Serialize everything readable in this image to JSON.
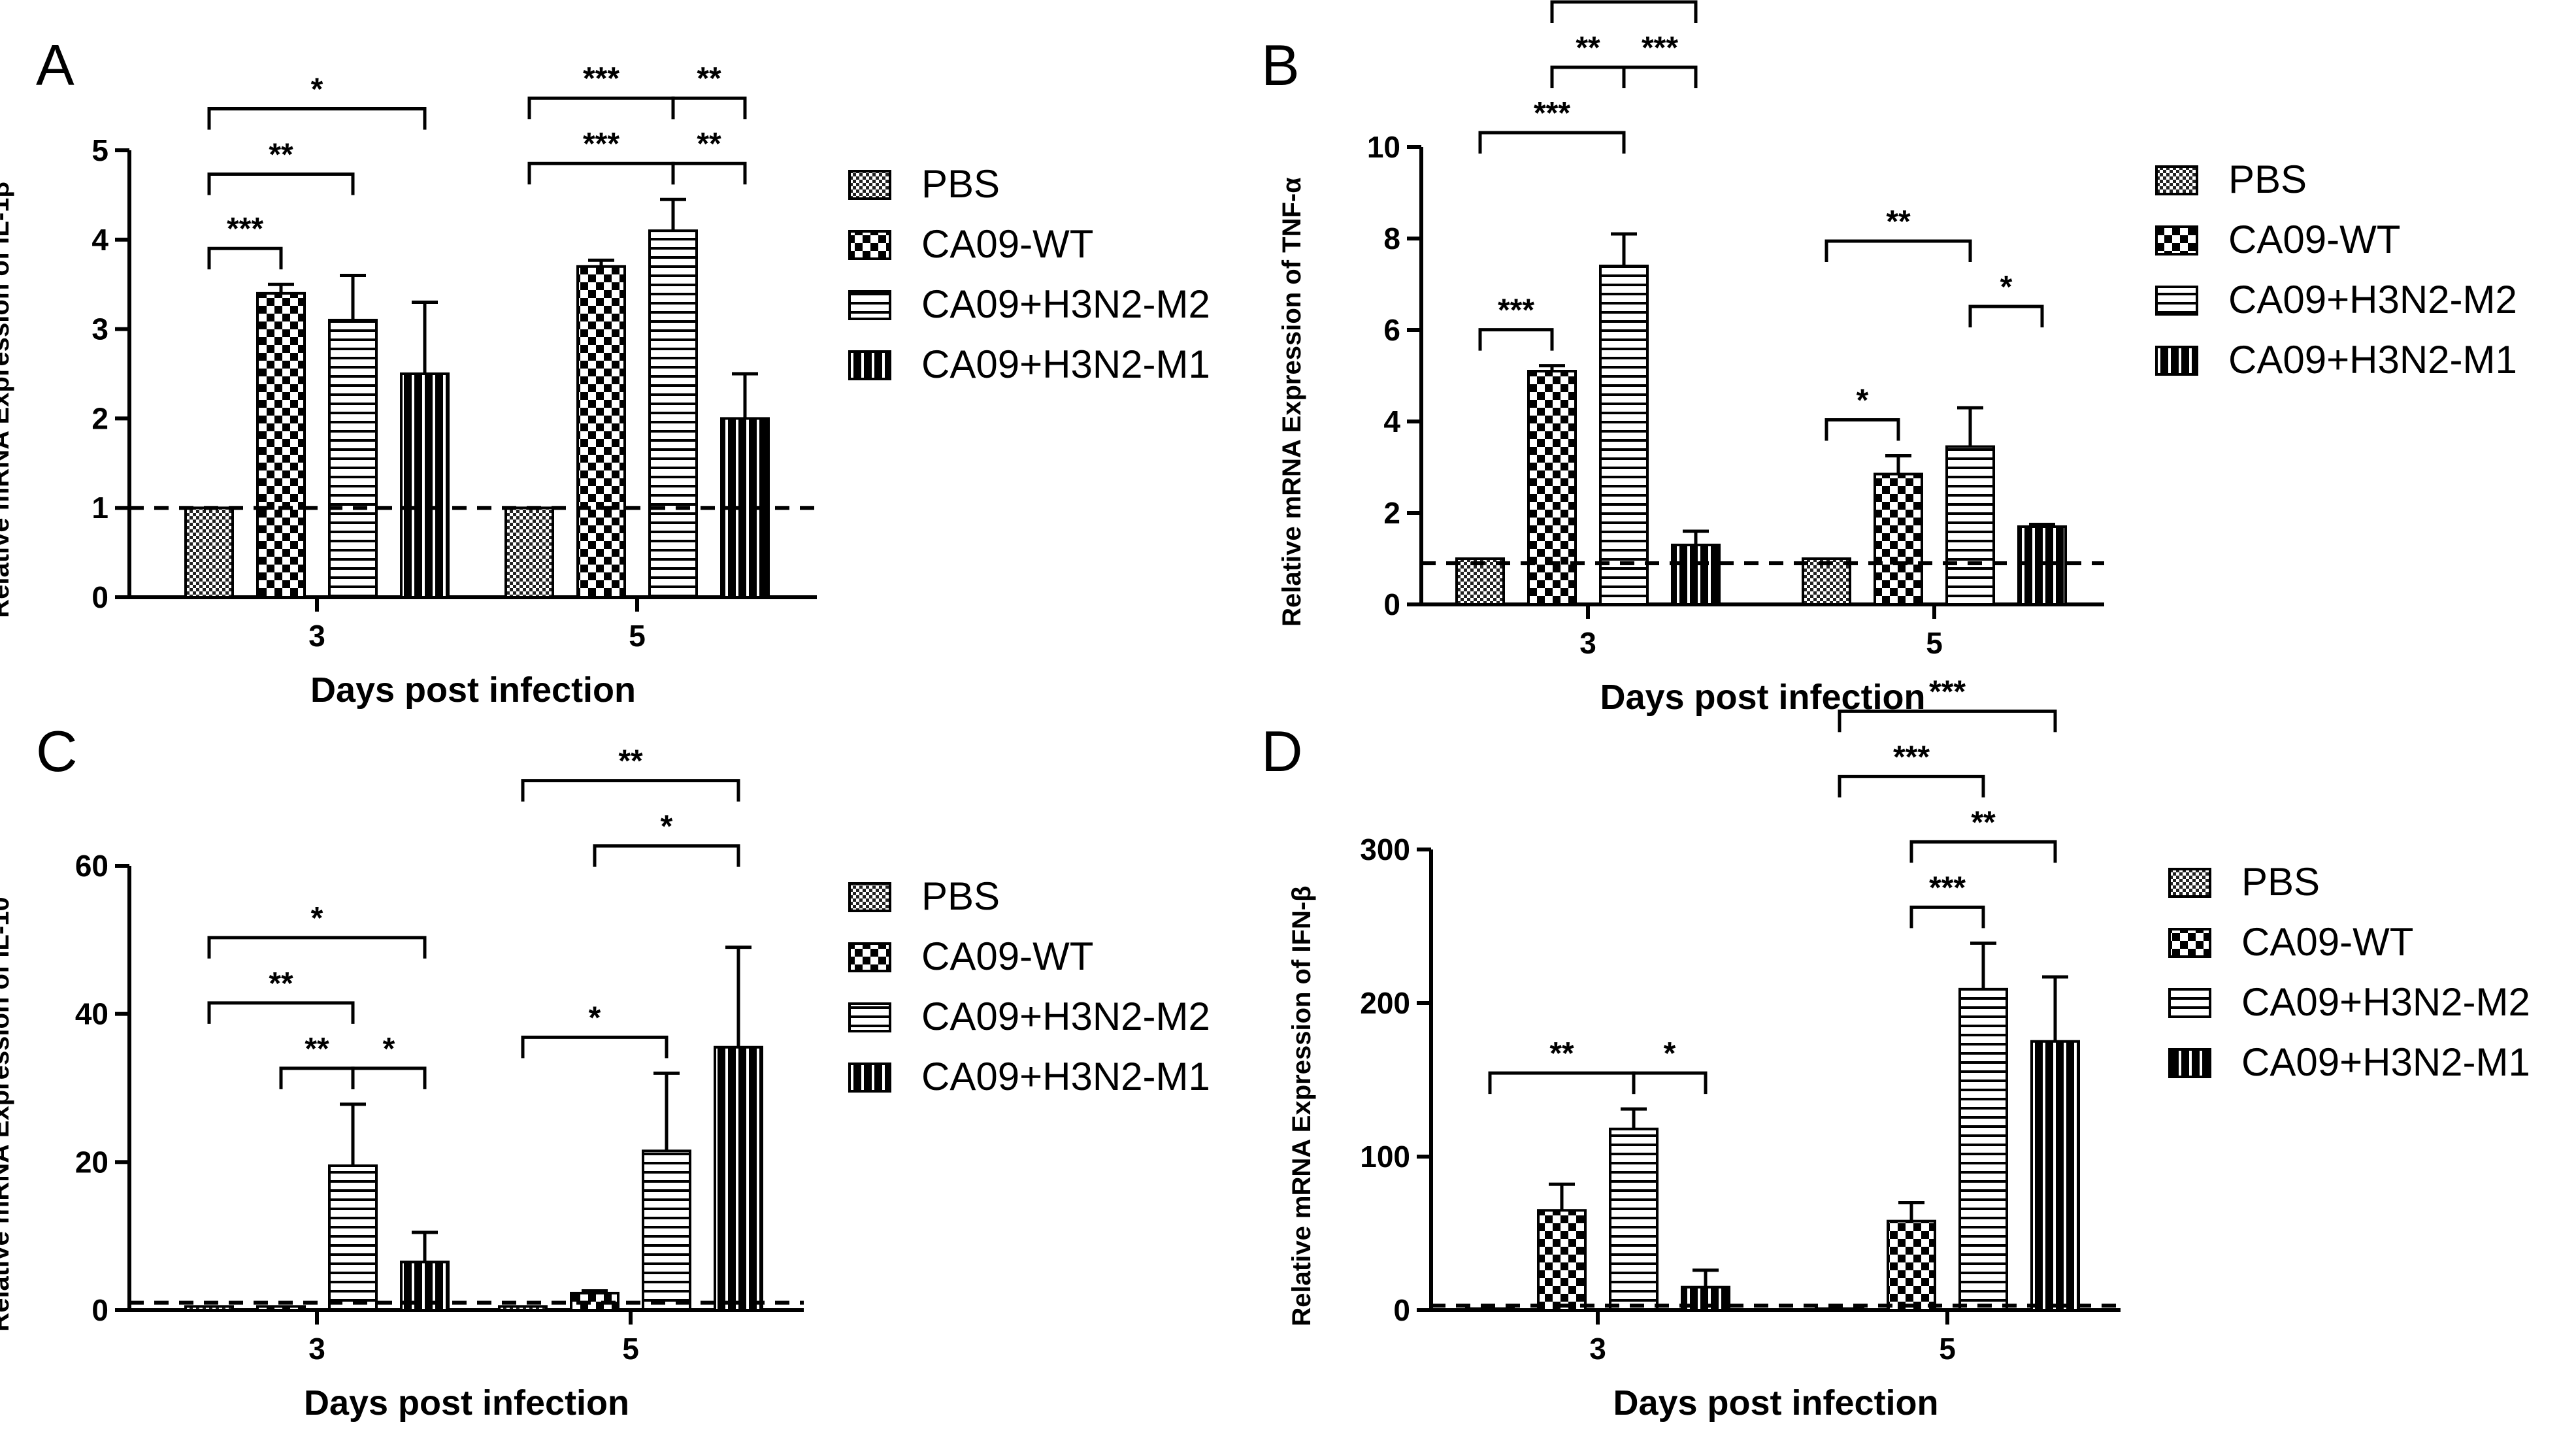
{
  "chart_data": [
    {
      "panel": "A",
      "type": "bar",
      "categories": [
        "3",
        "5"
      ],
      "xlabel": "Days post infection",
      "ylabel": "Relative mRNA Expression of IL-1β",
      "ylim": [
        0,
        5
      ],
      "yticks": [
        "0",
        "1",
        "2",
        "3",
        "4",
        "5"
      ],
      "reference_line": 1,
      "series": [
        {
          "name": "PBS",
          "values": [
            1.0,
            1.0
          ],
          "errors": [
            0,
            0
          ]
        },
        {
          "name": "CA09-WT",
          "values": [
            3.4,
            3.7
          ],
          "errors": [
            0.1,
            0.07
          ]
        },
        {
          "name": "CA09+H3N2-M2",
          "values": [
            3.1,
            4.1
          ],
          "errors": [
            0.5,
            0.35
          ]
        },
        {
          "name": "CA09+H3N2-M1",
          "values": [
            2.5,
            2.0
          ],
          "errors": [
            0.8,
            0.5
          ]
        }
      ],
      "significance": [
        {
          "day": "3",
          "from": 0,
          "to": 1,
          "label": "***",
          "level": 0,
          "joint": "none"
        },
        {
          "day": "3",
          "from": 0,
          "to": 2,
          "label": "**",
          "level": 1,
          "joint": "none"
        },
        {
          "day": "3",
          "from": 0,
          "to": 3,
          "label": "*",
          "level": 2,
          "joint": "none"
        },
        {
          "day": "5",
          "from": 0,
          "to": 2,
          "label": "***",
          "level": 0,
          "joint": "end"
        },
        {
          "day": "5",
          "from": 2,
          "to": 3,
          "label": "**",
          "level": 0,
          "joint": "start"
        },
        {
          "day": "5",
          "from": 0,
          "to": 2,
          "label": "***",
          "level": 1,
          "joint": "end"
        },
        {
          "day": "5",
          "from": 2,
          "to": 3,
          "label": "**",
          "level": 1,
          "joint": "start"
        }
      ]
    },
    {
      "panel": "B",
      "type": "bar",
      "categories": [
        "3",
        "5"
      ],
      "xlabel": "Days post infection",
      "ylabel": "Relative mRNA Expression of TNF-α",
      "ylim": [
        0,
        10
      ],
      "yticks": [
        "0",
        "2",
        "4",
        "6",
        "8",
        "10"
      ],
      "reference_line": 0.9,
      "series": [
        {
          "name": "PBS",
          "values": [
            1.0,
            1.0
          ],
          "errors": [
            0,
            0
          ]
        },
        {
          "name": "CA09-WT",
          "values": [
            5.1,
            2.85
          ],
          "errors": [
            0.12,
            0.4
          ]
        },
        {
          "name": "CA09+H3N2-M2",
          "values": [
            7.4,
            3.45
          ],
          "errors": [
            0.7,
            0.85
          ]
        },
        {
          "name": "CA09+H3N2-M1",
          "values": [
            1.3,
            1.7
          ],
          "errors": [
            0.3,
            0.05
          ]
        }
      ],
      "significance": [
        {
          "day": "3",
          "from": 0,
          "to": 1,
          "label": "***",
          "level": 0,
          "joint": "none"
        },
        {
          "day": "3",
          "from": 0,
          "to": 2,
          "label": "***",
          "level": 1,
          "joint": "none"
        },
        {
          "day": "3",
          "from": 1,
          "to": 2,
          "label": "**",
          "level": 2,
          "joint": "end"
        },
        {
          "day": "3",
          "from": 2,
          "to": 3,
          "label": "***",
          "level": 2,
          "joint": "start"
        },
        {
          "day": "3",
          "from": 1,
          "to": 3,
          "label": "***",
          "level": 3,
          "joint": "none"
        },
        {
          "day": "5",
          "from": 0,
          "to": 1,
          "label": "*",
          "level": 0,
          "joint": "none"
        },
        {
          "day": "5",
          "from": 2,
          "to": 3,
          "label": "*",
          "level": 1,
          "joint": "none"
        },
        {
          "day": "5",
          "from": 0,
          "to": 2,
          "label": "**",
          "level": 2,
          "joint": "none"
        }
      ]
    },
    {
      "panel": "C",
      "type": "bar",
      "categories": [
        "3",
        "5"
      ],
      "xlabel": "Days post infection",
      "ylabel": "Relative mRNA Expression of IL-10",
      "ylim": [
        0,
        60
      ],
      "yticks": [
        "0",
        "20",
        "40",
        "60"
      ],
      "reference_line": 1,
      "series": [
        {
          "name": "PBS",
          "values": [
            0.5,
            0.5
          ],
          "errors": [
            0,
            0
          ]
        },
        {
          "name": "CA09-WT",
          "values": [
            0.5,
            2.3
          ],
          "errors": [
            0,
            0.3
          ]
        },
        {
          "name": "CA09+H3N2-M2",
          "values": [
            19.5,
            21.5
          ],
          "errors": [
            8.3,
            10.5
          ]
        },
        {
          "name": "CA09+H3N2-M1",
          "values": [
            6.5,
            35.5
          ],
          "errors": [
            4.0,
            13.5
          ]
        }
      ],
      "significance": [
        {
          "day": "3",
          "from": 1,
          "to": 2,
          "label": "**",
          "level": 0,
          "joint": "end"
        },
        {
          "day": "3",
          "from": 2,
          "to": 3,
          "label": "*",
          "level": 0,
          "joint": "start"
        },
        {
          "day": "3",
          "from": 0,
          "to": 2,
          "label": "**",
          "level": 1,
          "joint": "none"
        },
        {
          "day": "3",
          "from": 0,
          "to": 3,
          "label": "*",
          "level": 2,
          "joint": "none"
        },
        {
          "day": "5",
          "from": 0,
          "to": 2,
          "label": "*",
          "level": 0,
          "joint": "none"
        },
        {
          "day": "5",
          "from": 1,
          "to": 3,
          "label": "*",
          "level": 1,
          "joint": "none"
        },
        {
          "day": "5",
          "from": 0,
          "to": 3,
          "label": "**",
          "level": 2,
          "joint": "none"
        }
      ]
    },
    {
      "panel": "D",
      "type": "bar",
      "categories": [
        "3",
        "5"
      ],
      "xlabel": "Days post infection",
      "ylabel": "Relative mRNA Expression of IFN-β",
      "ylim": [
        0,
        300
      ],
      "yticks": [
        "0",
        "100",
        "200",
        "300"
      ],
      "reference_line": 3,
      "series": [
        {
          "name": "PBS",
          "values": [
            1,
            1
          ],
          "errors": [
            0,
            0
          ]
        },
        {
          "name": "CA09-WT",
          "values": [
            65,
            58
          ],
          "errors": [
            17,
            12
          ]
        },
        {
          "name": "CA09+H3N2-M2",
          "values": [
            118,
            209
          ],
          "errors": [
            13,
            30
          ]
        },
        {
          "name": "CA09+H3N2-M1",
          "values": [
            15,
            175
          ],
          "errors": [
            11,
            42
          ]
        }
      ],
      "significance": [
        {
          "day": "3",
          "from": 0,
          "to": 2,
          "label": "**",
          "level": 0,
          "joint": "end"
        },
        {
          "day": "3",
          "from": 2,
          "to": 3,
          "label": "*",
          "level": 0,
          "joint": "start"
        },
        {
          "day": "5",
          "from": 1,
          "to": 2,
          "label": "***",
          "level": 0,
          "joint": "none"
        },
        {
          "day": "5",
          "from": 1,
          "to": 3,
          "label": "**",
          "level": 1,
          "joint": "none"
        },
        {
          "day": "5",
          "from": 0,
          "to": 2,
          "label": "***",
          "level": 2,
          "joint": "none"
        },
        {
          "day": "5",
          "from": 0,
          "to": 3,
          "label": "***",
          "level": 3,
          "joint": "none"
        }
      ]
    }
  ],
  "legend": {
    "entries": [
      "PBS",
      "CA09-WT",
      "CA09+H3N2-M2",
      "CA09+H3N2-M1"
    ],
    "patterns": [
      "dense-checker",
      "checker",
      "horizontal-stripes",
      "vertical-stripes"
    ]
  },
  "colors": {
    "ink": "#000000",
    "background": "#ffffff"
  }
}
